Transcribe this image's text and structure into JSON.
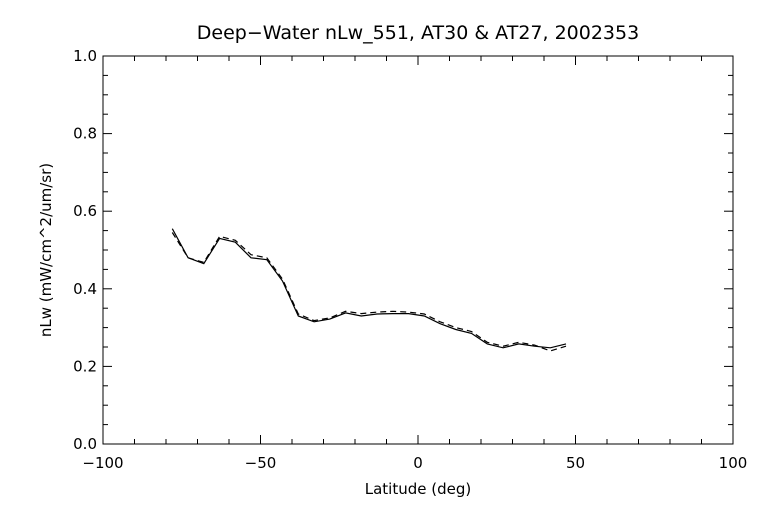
{
  "chart_data": {
    "type": "line",
    "title": "Deep−Water nLw_551, AT30 & AT27, 2002353",
    "xlabel": "Latitude (deg)",
    "ylabel": "nLw (mW/cm^2/um/sr)",
    "xlim": [
      -100,
      100
    ],
    "ylim": [
      0.0,
      1.0
    ],
    "x_ticks": [
      -100,
      -50,
      0,
      50,
      100
    ],
    "x_tick_labels": [
      "−100",
      "−50",
      "0",
      "50",
      "100"
    ],
    "y_ticks": [
      0.0,
      0.2,
      0.4,
      0.6,
      0.8,
      1.0
    ],
    "y_tick_labels": [
      "0.0",
      "0.2",
      "0.4",
      "0.6",
      "0.8",
      "1.0"
    ],
    "grid": false,
    "colors": {
      "line": "#000000",
      "axes": "#000000",
      "background": "#ffffff"
    },
    "series": [
      {
        "style": "solid",
        "x": [
          -78,
          -73,
          -68,
          -63,
          -58,
          -53,
          -48,
          -43,
          -38,
          -33,
          -28,
          -23,
          -18,
          -13,
          -8,
          -3,
          2,
          7,
          12,
          17,
          22,
          27,
          32,
          37,
          42,
          47
        ],
        "y": [
          0.555,
          0.48,
          0.465,
          0.53,
          0.52,
          0.48,
          0.475,
          0.42,
          0.33,
          0.315,
          0.322,
          0.338,
          0.33,
          0.335,
          0.336,
          0.336,
          0.33,
          0.31,
          0.295,
          0.285,
          0.258,
          0.248,
          0.258,
          0.252,
          0.248,
          0.258
        ]
      },
      {
        "style": "dashed",
        "x": [
          -78,
          -73,
          -68,
          -63,
          -58,
          -53,
          -48,
          -43,
          -38,
          -33,
          -28,
          -23,
          -18,
          -13,
          -8,
          -3,
          2,
          7,
          12,
          17,
          22,
          27,
          32,
          37,
          42,
          47
        ],
        "y": [
          0.545,
          0.48,
          0.468,
          0.535,
          0.525,
          0.488,
          0.48,
          0.425,
          0.335,
          0.318,
          0.325,
          0.342,
          0.336,
          0.34,
          0.342,
          0.34,
          0.335,
          0.315,
          0.3,
          0.29,
          0.262,
          0.252,
          0.262,
          0.255,
          0.24,
          0.252
        ]
      }
    ]
  }
}
